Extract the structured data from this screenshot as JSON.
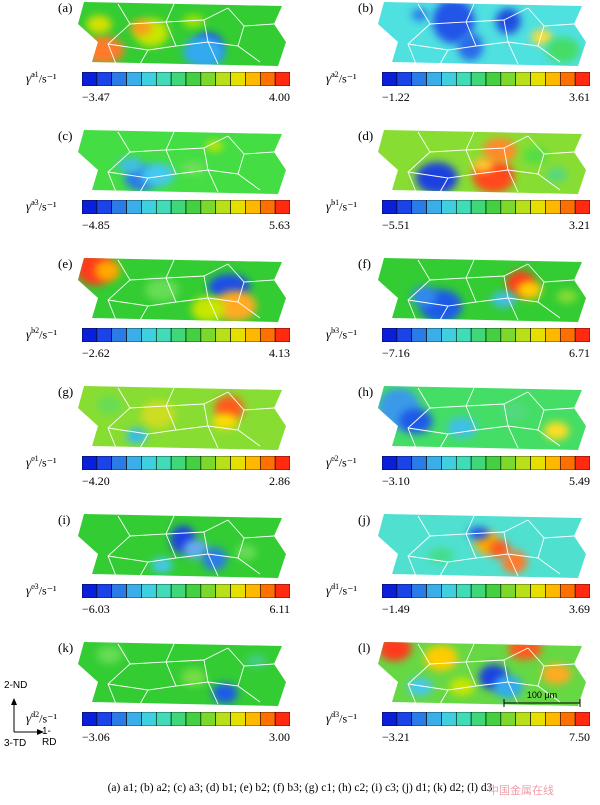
{
  "panels": [
    {
      "label": "(a)",
      "sym": "a1",
      "min": "−3.47",
      "max": "4.00",
      "base": "#33cc33",
      "blobs": [
        [
          0.12,
          0.75,
          0.1,
          0.22,
          "#ff7a2a"
        ],
        [
          0.1,
          0.35,
          0.06,
          0.14,
          "#d8e000"
        ],
        [
          0.35,
          0.48,
          0.08,
          0.22,
          "#c8e600"
        ],
        [
          0.3,
          0.4,
          0.05,
          0.12,
          "#ff9a1a"
        ],
        [
          0.62,
          0.7,
          0.07,
          0.22,
          "#1a3fe6"
        ],
        [
          0.6,
          0.78,
          0.1,
          0.25,
          "#33aaee"
        ],
        [
          0.55,
          0.3,
          0.05,
          0.1,
          "#9ce600"
        ]
      ]
    },
    {
      "label": "(b)",
      "sym": "a2",
      "min": "−1.22",
      "max": "3.61",
      "base": "#4fe0e0",
      "blobs": [
        [
          0.36,
          0.3,
          0.1,
          0.35,
          "#2255e8"
        ],
        [
          0.44,
          0.7,
          0.06,
          0.22,
          "#2a6ae8"
        ],
        [
          0.62,
          0.3,
          0.06,
          0.2,
          "#1f4de0"
        ],
        [
          0.2,
          0.2,
          0.04,
          0.1,
          "#2a80e8"
        ],
        [
          0.78,
          0.55,
          0.05,
          0.12,
          "#ffdd33"
        ],
        [
          0.88,
          0.75,
          0.08,
          0.2,
          "#44dd66"
        ]
      ]
    },
    {
      "label": "(c)",
      "sym": "a3",
      "min": "−4.85",
      "max": "5.63",
      "base": "#44dd44",
      "blobs": [
        [
          0.3,
          0.75,
          0.08,
          0.2,
          "#2a7ae8"
        ],
        [
          0.38,
          0.7,
          0.08,
          0.18,
          "#44c8f0"
        ],
        [
          0.25,
          0.55,
          0.06,
          0.12,
          "#3fbfe8"
        ],
        [
          0.65,
          0.25,
          0.04,
          0.08,
          "#c8e600"
        ],
        [
          0.55,
          0.6,
          0.06,
          0.1,
          "#6ee05a"
        ]
      ]
    },
    {
      "label": "(d)",
      "sym": "b1",
      "min": "−5.51",
      "max": "3.21",
      "base": "#88dd33",
      "blobs": [
        [
          0.28,
          0.75,
          0.1,
          0.25,
          "#1f3fe0"
        ],
        [
          0.55,
          0.72,
          0.1,
          0.26,
          "#ff4a1a"
        ],
        [
          0.58,
          0.32,
          0.08,
          0.2,
          "#ff8a2a"
        ],
        [
          0.5,
          0.55,
          0.05,
          0.1,
          "#ffcc33"
        ],
        [
          0.75,
          0.4,
          0.06,
          0.14,
          "#55dd44"
        ],
        [
          0.85,
          0.7,
          0.05,
          0.12,
          "#55d880"
        ]
      ]
    },
    {
      "label": "(e)",
      "sym": "b2",
      "min": "−2.62",
      "max": "4.13",
      "base": "#33cc33",
      "blobs": [
        [
          0.08,
          0.15,
          0.09,
          0.28,
          "#ff3a1a"
        ],
        [
          0.14,
          0.2,
          0.06,
          0.16,
          "#ffaa00"
        ],
        [
          0.72,
          0.45,
          0.1,
          0.2,
          "#1f4de8"
        ],
        [
          0.75,
          0.75,
          0.1,
          0.24,
          "#ffaa22"
        ],
        [
          0.62,
          0.8,
          0.08,
          0.2,
          "#c8e600"
        ],
        [
          0.4,
          0.5,
          0.08,
          0.18,
          "#66dd55"
        ]
      ]
    },
    {
      "label": "(f)",
      "sym": "b3",
      "min": "−7.16",
      "max": "6.71",
      "base": "#33cc33",
      "blobs": [
        [
          0.3,
          0.75,
          0.1,
          0.26,
          "#1f5ae8"
        ],
        [
          0.22,
          0.6,
          0.06,
          0.16,
          "#3388ee"
        ],
        [
          0.68,
          0.4,
          0.07,
          0.2,
          "#ff3a1a"
        ],
        [
          0.72,
          0.5,
          0.06,
          0.14,
          "#ffcc00"
        ],
        [
          0.6,
          0.65,
          0.06,
          0.12,
          "#44bbee"
        ],
        [
          0.9,
          0.6,
          0.05,
          0.1,
          "#88dd33"
        ]
      ]
    },
    {
      "label": "(g)",
      "sym": "c1",
      "min": "−4.20",
      "max": "2.86",
      "base": "#88dd33",
      "blobs": [
        [
          0.72,
          0.35,
          0.07,
          0.2,
          "#ff5a1a"
        ],
        [
          0.7,
          0.55,
          0.06,
          0.12,
          "#ffdd00"
        ],
        [
          0.38,
          0.45,
          0.08,
          0.22,
          "#ccdd22"
        ],
        [
          0.28,
          0.78,
          0.05,
          0.12,
          "#33bbee"
        ],
        [
          0.15,
          0.3,
          0.06,
          0.14,
          "#66dd55"
        ]
      ]
    },
    {
      "label": "(h)",
      "sym": "c2",
      "min": "−3.10",
      "max": "5.49",
      "base": "#44dd66",
      "blobs": [
        [
          0.1,
          0.35,
          0.1,
          0.32,
          "#3a9ae8"
        ],
        [
          0.18,
          0.55,
          0.08,
          0.2,
          "#1f5ae8"
        ],
        [
          0.4,
          0.65,
          0.07,
          0.16,
          "#3fbfe8"
        ],
        [
          0.85,
          0.7,
          0.06,
          0.14,
          "#ffdd22"
        ],
        [
          0.65,
          0.4,
          0.06,
          0.14,
          "#55d880"
        ]
      ]
    },
    {
      "label": "(i)",
      "sym": "c3",
      "min": "−6.03",
      "max": "6.11",
      "base": "#33cc33",
      "blobs": [
        [
          0.5,
          0.4,
          0.06,
          0.22,
          "#1f3fe0"
        ],
        [
          0.56,
          0.55,
          0.06,
          0.15,
          "#66aaee"
        ],
        [
          0.65,
          0.7,
          0.06,
          0.18,
          "#2a7ae8"
        ],
        [
          0.4,
          0.8,
          0.05,
          0.12,
          "#44c8f0"
        ],
        [
          0.8,
          0.6,
          0.05,
          0.12,
          "#66dd55"
        ]
      ]
    },
    {
      "label": "(j)",
      "sym": "d1",
      "min": "−1.49",
      "max": "3.69",
      "base": "#4fe0d0",
      "blobs": [
        [
          0.52,
          0.45,
          0.06,
          0.18,
          "#ffaa00"
        ],
        [
          0.58,
          0.55,
          0.05,
          0.14,
          "#ff5a1a"
        ],
        [
          0.65,
          0.75,
          0.06,
          0.18,
          "#ff7a2a"
        ],
        [
          0.48,
          0.3,
          0.05,
          0.1,
          "#2255e8"
        ],
        [
          0.3,
          0.65,
          0.06,
          0.12,
          "#44dd88"
        ]
      ]
    },
    {
      "label": "(k)",
      "sym": "d2",
      "min": "−3.06",
      "max": "3.00",
      "base": "#33cc33",
      "blobs": [
        [
          0.7,
          0.8,
          0.06,
          0.16,
          "#1f5ae8"
        ],
        [
          0.15,
          0.2,
          0.06,
          0.14,
          "#66dd55"
        ],
        [
          0.55,
          0.55,
          0.06,
          0.14,
          "#77dd44"
        ],
        [
          0.85,
          0.3,
          0.05,
          0.1,
          "#44cc88"
        ]
      ]
    },
    {
      "label": "(l)",
      "sym": "d3",
      "min": "−3.21",
      "max": "7.50",
      "base": "#66d844",
      "blobs": [
        [
          0.08,
          0.1,
          0.08,
          0.2,
          "#ff3a1a"
        ],
        [
          0.3,
          0.25,
          0.08,
          0.2,
          "#ffcc00"
        ],
        [
          0.55,
          0.55,
          0.07,
          0.2,
          "#1f3fe0"
        ],
        [
          0.62,
          0.7,
          0.07,
          0.18,
          "#33aaee"
        ],
        [
          0.7,
          0.1,
          0.08,
          0.18,
          "#ff5a1a"
        ],
        [
          0.85,
          0.5,
          0.07,
          0.16,
          "#ffaa22"
        ],
        [
          0.4,
          0.7,
          0.06,
          0.14,
          "#c8e600"
        ],
        [
          0.2,
          0.7,
          0.06,
          0.14,
          "#44c8f0"
        ]
      ]
    }
  ],
  "colorbar_colors": [
    "#0a1fd8",
    "#1a44e8",
    "#2a7ae8",
    "#3aaee8",
    "#3fd0e0",
    "#40dcb8",
    "#3fd878",
    "#44d040",
    "#7cd82c",
    "#b8e01a",
    "#e6e000",
    "#ffb800",
    "#ff7000",
    "#ff2a10"
  ],
  "symbol": "γ̇",
  "unit": "/s⁻¹",
  "axes": {
    "y": "2-ND",
    "x": "1-RD",
    "z": "3-TD"
  },
  "scalebar": "100 μm",
  "caption": "(a) a1; (b) a2; (c) a3; (d) b1; (e) b2; (f) b3; (g) c1; (h) c2; (i) c3; (j) d1; (k) d2; (l) d3",
  "watermark": "中国金属在线"
}
